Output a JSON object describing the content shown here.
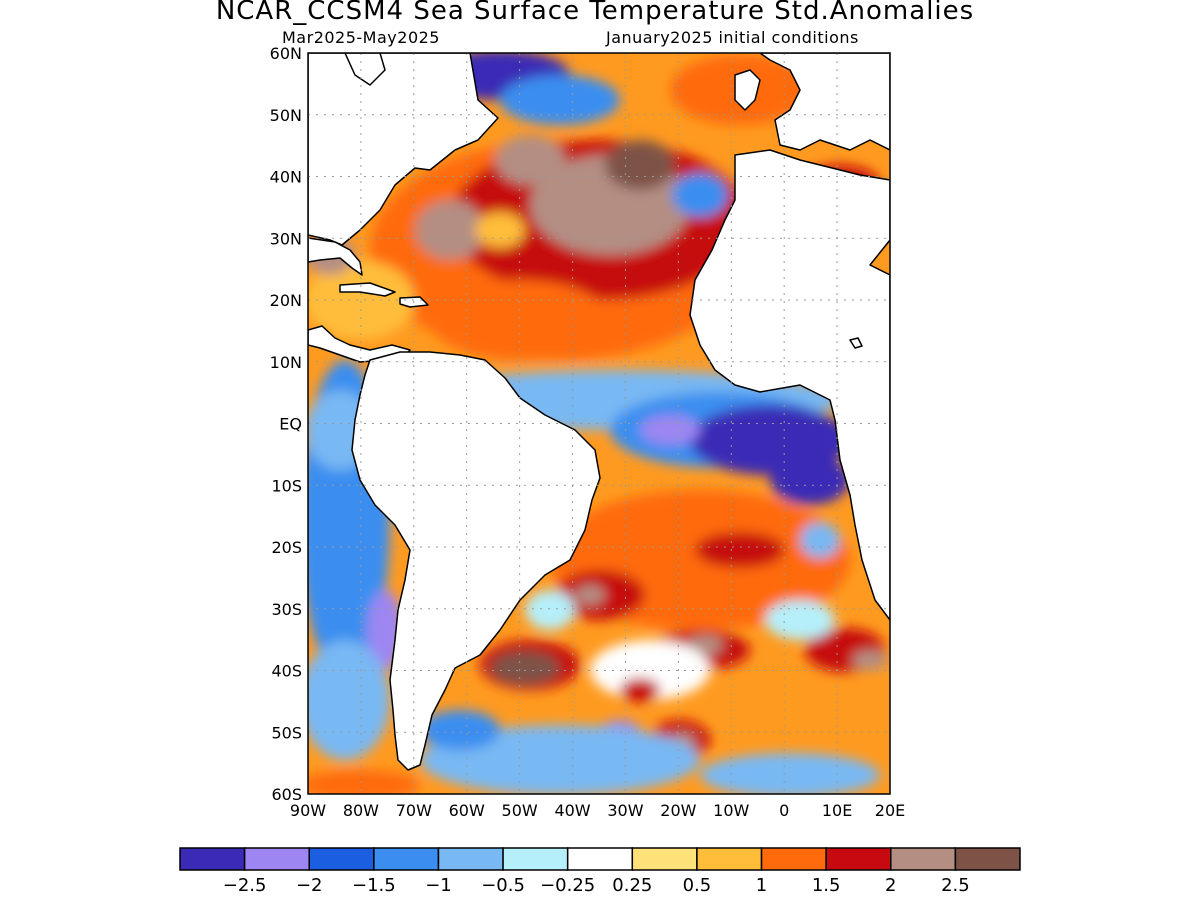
{
  "header": {
    "title": "NCAR_CCSM4 Sea Surface Temperature Std.Anomalies",
    "period": "Mar2025-May2025",
    "init": "January2025 initial conditions"
  },
  "axes": {
    "lat_labels": [
      "60N",
      "50N",
      "40N",
      "30N",
      "20N",
      "10N",
      "EQ",
      "10S",
      "20S",
      "30S",
      "40S",
      "50S",
      "60S"
    ],
    "lon_labels": [
      "90W",
      "80W",
      "70W",
      "60W",
      "50W",
      "40W",
      "30W",
      "20W",
      "10W",
      "0",
      "10E",
      "20E"
    ],
    "lat_range": [
      -60,
      60
    ],
    "lon_range": [
      -90,
      20
    ],
    "grid": true
  },
  "colorbar": {
    "colors": [
      "#3b2ab5",
      "#9d86f2",
      "#1b5fe0",
      "#3b8ef0",
      "#78b8f3",
      "#b5effa",
      "#ffffff",
      "#ffe17a",
      "#ffbd3a",
      "#ff6a0c",
      "#c60a10",
      "#b48e83",
      "#7e5246"
    ],
    "labels": [
      "-2.5",
      "-2",
      "-1.5",
      "-1",
      "-0.5",
      "-0.25",
      "0.25",
      "0.5",
      "1",
      "1.5",
      "2",
      "2.5"
    ]
  },
  "map": {
    "land_color": "#ffffff",
    "coast_color": "#000000"
  }
}
